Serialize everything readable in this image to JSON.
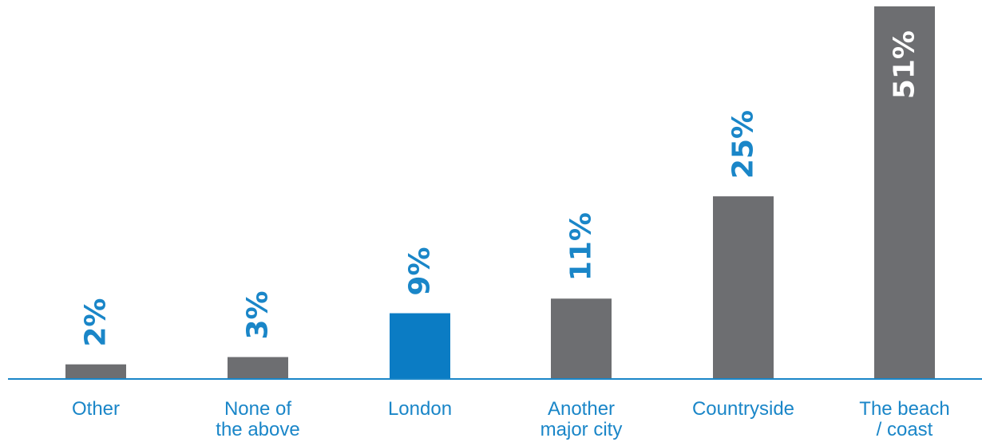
{
  "chart_data": {
    "type": "bar",
    "title": "",
    "xlabel": "",
    "ylabel": "",
    "ylim": [
      0,
      51
    ],
    "grid": false,
    "legend": "none",
    "unit": "%",
    "categories": [
      [
        "Other"
      ],
      [
        "None of",
        "the above"
      ],
      [
        "London"
      ],
      [
        "Another",
        "major city"
      ],
      [
        "Countryside"
      ],
      [
        "The beach",
        "/ coast"
      ]
    ],
    "values": [
      2,
      3,
      9,
      11,
      25,
      51
    ],
    "value_labels": [
      "2%",
      "3%",
      "9%",
      "11%",
      "25%",
      "51%"
    ],
    "highlight_index": 2,
    "colors": {
      "bar": "#6d6e71",
      "highlight": "#0b7cc4",
      "axis": "#1a86c8",
      "category_text": "#1a86c8",
      "value_text_outside": "#1a86c8",
      "value_text_inside": "#ffffff"
    }
  }
}
